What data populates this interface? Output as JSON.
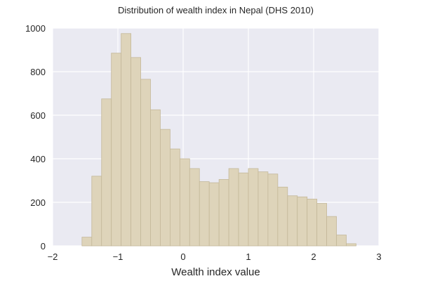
{
  "chart_data": {
    "type": "bar",
    "title": "Distribution of wealth index in Nepal (DHS 2010)",
    "xlabel": "Wealth index value",
    "ylabel": "",
    "xlim": [
      -2,
      3
    ],
    "ylim": [
      0,
      1000
    ],
    "xticks": [
      -2,
      -1,
      0,
      1,
      2,
      3
    ],
    "yticks": [
      0,
      200,
      400,
      600,
      800,
      1000
    ],
    "grid": true,
    "colors": {
      "bar_fill": "#ded4ba",
      "bar_stroke": "#c4b89a",
      "plot_background": "#eaeaf2",
      "grid": "#ffffff"
    },
    "bin_edges": [
      -1.55,
      -1.4,
      -1.25,
      -1.1,
      -0.95,
      -0.8,
      -0.65,
      -0.5,
      -0.35,
      -0.2,
      -0.05,
      0.1,
      0.25,
      0.4,
      0.55,
      0.7,
      0.85,
      1.0,
      1.15,
      1.3,
      1.45,
      1.6,
      1.75,
      1.9,
      2.05,
      2.2,
      2.35,
      2.5,
      2.65
    ],
    "counts": [
      40,
      320,
      675,
      885,
      975,
      865,
      765,
      625,
      535,
      445,
      400,
      355,
      295,
      290,
      305,
      355,
      335,
      355,
      340,
      330,
      270,
      230,
      225,
      215,
      195,
      135,
      50,
      10
    ]
  }
}
